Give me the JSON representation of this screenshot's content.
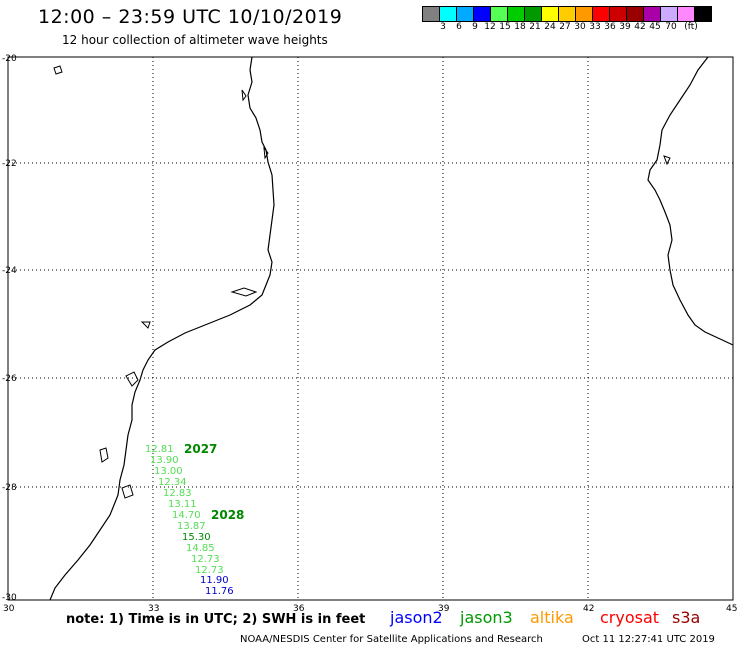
{
  "header": {
    "title": "12:00 – 23:59 UTC 10/10/2019",
    "subtitle": "12 hour collection of altimeter wave heights"
  },
  "colorbar": {
    "colors": [
      "#808080",
      "#00ffff",
      "#00aaff",
      "#0000ff",
      "#55ff55",
      "#00cc00",
      "#009900",
      "#ffff00",
      "#ffcc00",
      "#ff9900",
      "#ff0000",
      "#cc0000",
      "#990000",
      "#aa00aa",
      "#ccaaff",
      "#ff88ff",
      "#000000"
    ],
    "labels": [
      "3",
      "6",
      "9",
      "12",
      "15",
      "18",
      "21",
      "24",
      "27",
      "30",
      "33",
      "36",
      "39",
      "42",
      "45",
      "70",
      "(ft)"
    ]
  },
  "map": {
    "lon_range": [
      30,
      45
    ],
    "lat_range": [
      -30,
      -20
    ],
    "lon_ticks": [
      "30",
      "33",
      "36",
      "39",
      "42",
      "45"
    ],
    "lat_ticks": [
      "-20",
      "-22",
      "-24",
      "-26",
      "-28",
      "-30"
    ]
  },
  "passes": [
    {
      "label": "2027",
      "color": "#008800"
    },
    {
      "label": "2028",
      "color": "#008800"
    }
  ],
  "observations": [
    {
      "value": "12.81",
      "color": "#55dd55"
    },
    {
      "value": "13.90",
      "color": "#55dd55"
    },
    {
      "value": "13.00",
      "color": "#55dd55"
    },
    {
      "value": "12.34",
      "color": "#55dd55"
    },
    {
      "value": "12.83",
      "color": "#55dd55"
    },
    {
      "value": "13.11",
      "color": "#55dd55"
    },
    {
      "value": "14.70",
      "color": "#55dd55"
    },
    {
      "value": "13.87",
      "color": "#55dd55"
    },
    {
      "value": "15.30",
      "color": "#008800"
    },
    {
      "value": "14.85",
      "color": "#55dd55"
    },
    {
      "value": "12.73",
      "color": "#55dd55"
    },
    {
      "value": "12.73",
      "color": "#55dd55"
    },
    {
      "value": "11.90",
      "color": "#0000cc"
    },
    {
      "value": "11.76",
      "color": "#0000cc"
    }
  ],
  "footer": {
    "note": "note: 1) Time is in UTC; 2) SWH is in feet",
    "legend": [
      {
        "label": "jason2",
        "color": "#0000ff"
      },
      {
        "label": "jason3",
        "color": "#009900"
      },
      {
        "label": "altika",
        "color": "#ff9900"
      },
      {
        "label": "cryosat",
        "color": "#ff0000"
      },
      {
        "label": "s3a",
        "color": "#990000"
      }
    ],
    "credit": "NOAA/NESDIS Center for Satellite Applications and Research",
    "timestamp": "Oct 11 12:27:41 UTC 2019"
  }
}
